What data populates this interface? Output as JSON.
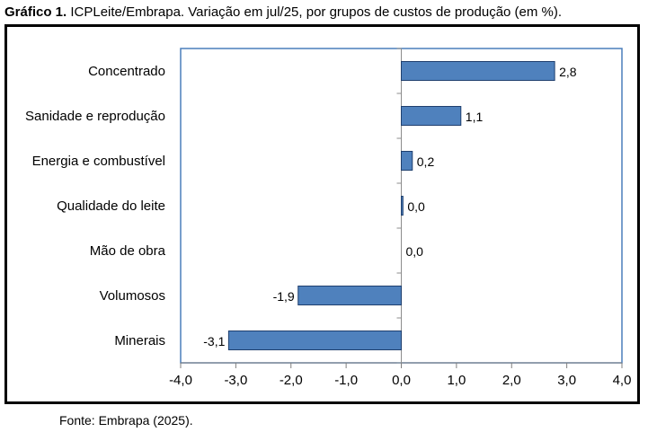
{
  "header": {
    "title_bold": "Gráfico 1.",
    "title_rest": " ICPLeite/Embrapa. Variação em jul/25, por grupos de custos de produção (em %)."
  },
  "footer": {
    "source": "Fonte: Embrapa (2025)."
  },
  "chart_data": {
    "type": "bar",
    "orientation": "horizontal",
    "categories": [
      "Concentrado",
      "Sanidade e reprodução",
      "Energia e combustível",
      "Qualidade do leite",
      "Mão de obra",
      "Volumosos",
      "Minerais"
    ],
    "values": [
      2.78,
      1.08,
      0.2,
      0.03,
      0.0,
      -1.87,
      -3.13
    ],
    "value_labels": [
      "2,8",
      "1,1",
      "0,2",
      "0,0",
      "0,0",
      "-1,9",
      "-3,1"
    ],
    "xlim": [
      -4.0,
      4.0
    ],
    "x_ticks": [
      -4,
      -3,
      -2,
      -1,
      0,
      1,
      2,
      3,
      4
    ],
    "x_tick_labels": [
      "-4,0",
      "-3,0",
      "-2,0",
      "-1,0",
      "0,0",
      "1,0",
      "2,0",
      "3,0",
      "4,0"
    ],
    "bar_color": "#4F81BD",
    "bar_edge_color": "#1F3F6E",
    "plot_border_color": "#4A7EBB",
    "grid": false,
    "legend": "none"
  }
}
